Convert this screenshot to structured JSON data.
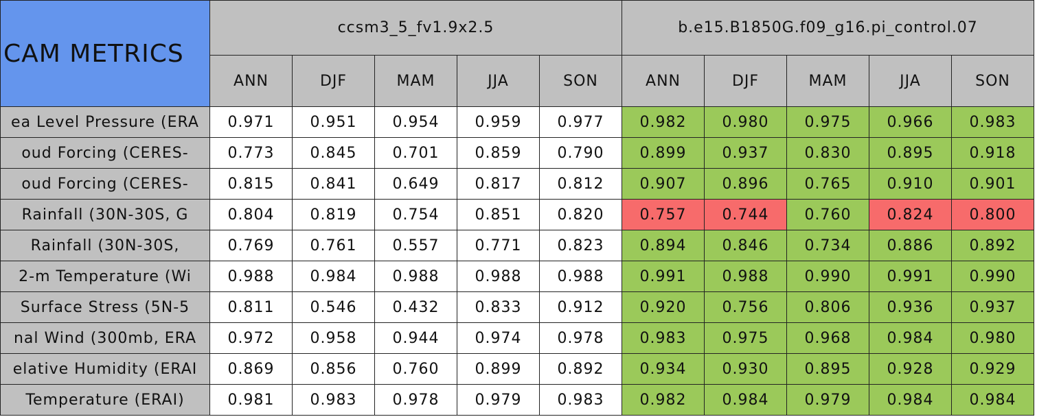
{
  "header": {
    "title": "CAM METRICS",
    "groups": [
      {
        "name": "ccsm3_5_fv1.9x2.5",
        "seasons": [
          "ANN",
          "DJF",
          "MAM",
          "JJA",
          "SON"
        ]
      },
      {
        "name": "b.e15.B1850G.f09_g16.pi_control.07",
        "seasons": [
          "ANN",
          "DJF",
          "MAM",
          "JJA",
          "SON"
        ]
      }
    ]
  },
  "colors": {
    "w": "#ffffff",
    "g": "#9bc95a",
    "r": "#f76b6b"
  },
  "table": {
    "rows": [
      {
        "label": "ea Level Pressure (ERA",
        "values": [
          "0.971",
          "0.951",
          "0.954",
          "0.959",
          "0.977",
          "0.982",
          "0.980",
          "0.975",
          "0.966",
          "0.983"
        ],
        "fills": [
          "w",
          "w",
          "w",
          "w",
          "w",
          "g",
          "g",
          "g",
          "g",
          "g"
        ]
      },
      {
        "label": "oud Forcing (CERES-",
        "values": [
          "0.773",
          "0.845",
          "0.701",
          "0.859",
          "0.790",
          "0.899",
          "0.937",
          "0.830",
          "0.895",
          "0.918"
        ],
        "fills": [
          "w",
          "w",
          "w",
          "w",
          "w",
          "g",
          "g",
          "g",
          "g",
          "g"
        ]
      },
      {
        "label": "oud Forcing (CERES-",
        "values": [
          "0.815",
          "0.841",
          "0.649",
          "0.817",
          "0.812",
          "0.907",
          "0.896",
          "0.765",
          "0.910",
          "0.901"
        ],
        "fills": [
          "w",
          "w",
          "w",
          "w",
          "w",
          "g",
          "g",
          "g",
          "g",
          "g"
        ]
      },
      {
        "label": "Rainfall (30N-30S, G",
        "values": [
          "0.804",
          "0.819",
          "0.754",
          "0.851",
          "0.820",
          "0.757",
          "0.744",
          "0.760",
          "0.824",
          "0.800"
        ],
        "fills": [
          "w",
          "w",
          "w",
          "w",
          "w",
          "r",
          "r",
          "g",
          "r",
          "r"
        ]
      },
      {
        "label": "Rainfall (30N-30S,",
        "values": [
          "0.769",
          "0.761",
          "0.557",
          "0.771",
          "0.823",
          "0.894",
          "0.846",
          "0.734",
          "0.886",
          "0.892"
        ],
        "fills": [
          "w",
          "w",
          "w",
          "w",
          "w",
          "g",
          "g",
          "g",
          "g",
          "g"
        ]
      },
      {
        "label": "2-m Temperature (Wi",
        "values": [
          "0.988",
          "0.984",
          "0.988",
          "0.988",
          "0.988",
          "0.991",
          "0.988",
          "0.990",
          "0.991",
          "0.990"
        ],
        "fills": [
          "w",
          "w",
          "w",
          "w",
          "w",
          "g",
          "g",
          "g",
          "g",
          "g"
        ]
      },
      {
        "label": "Surface Stress (5N-5",
        "values": [
          "0.811",
          "0.546",
          "0.432",
          "0.833",
          "0.912",
          "0.920",
          "0.756",
          "0.806",
          "0.936",
          "0.937"
        ],
        "fills": [
          "w",
          "w",
          "w",
          "w",
          "w",
          "g",
          "g",
          "g",
          "g",
          "g"
        ]
      },
      {
        "label": "nal Wind (300mb, ERA",
        "values": [
          "0.972",
          "0.958",
          "0.944",
          "0.974",
          "0.978",
          "0.983",
          "0.975",
          "0.968",
          "0.984",
          "0.980"
        ],
        "fills": [
          "w",
          "w",
          "w",
          "w",
          "w",
          "g",
          "g",
          "g",
          "g",
          "g"
        ]
      },
      {
        "label": "elative Humidity (ERAI",
        "values": [
          "0.869",
          "0.856",
          "0.760",
          "0.899",
          "0.892",
          "0.934",
          "0.930",
          "0.895",
          "0.928",
          "0.929"
        ],
        "fills": [
          "w",
          "w",
          "w",
          "w",
          "w",
          "g",
          "g",
          "g",
          "g",
          "g"
        ]
      },
      {
        "label": "Temperature (ERAI)",
        "values": [
          "0.981",
          "0.983",
          "0.978",
          "0.979",
          "0.983",
          "0.982",
          "0.984",
          "0.979",
          "0.984",
          "0.984"
        ],
        "fills": [
          "w",
          "w",
          "w",
          "w",
          "w",
          "g",
          "g",
          "g",
          "g",
          "g"
        ]
      }
    ]
  }
}
